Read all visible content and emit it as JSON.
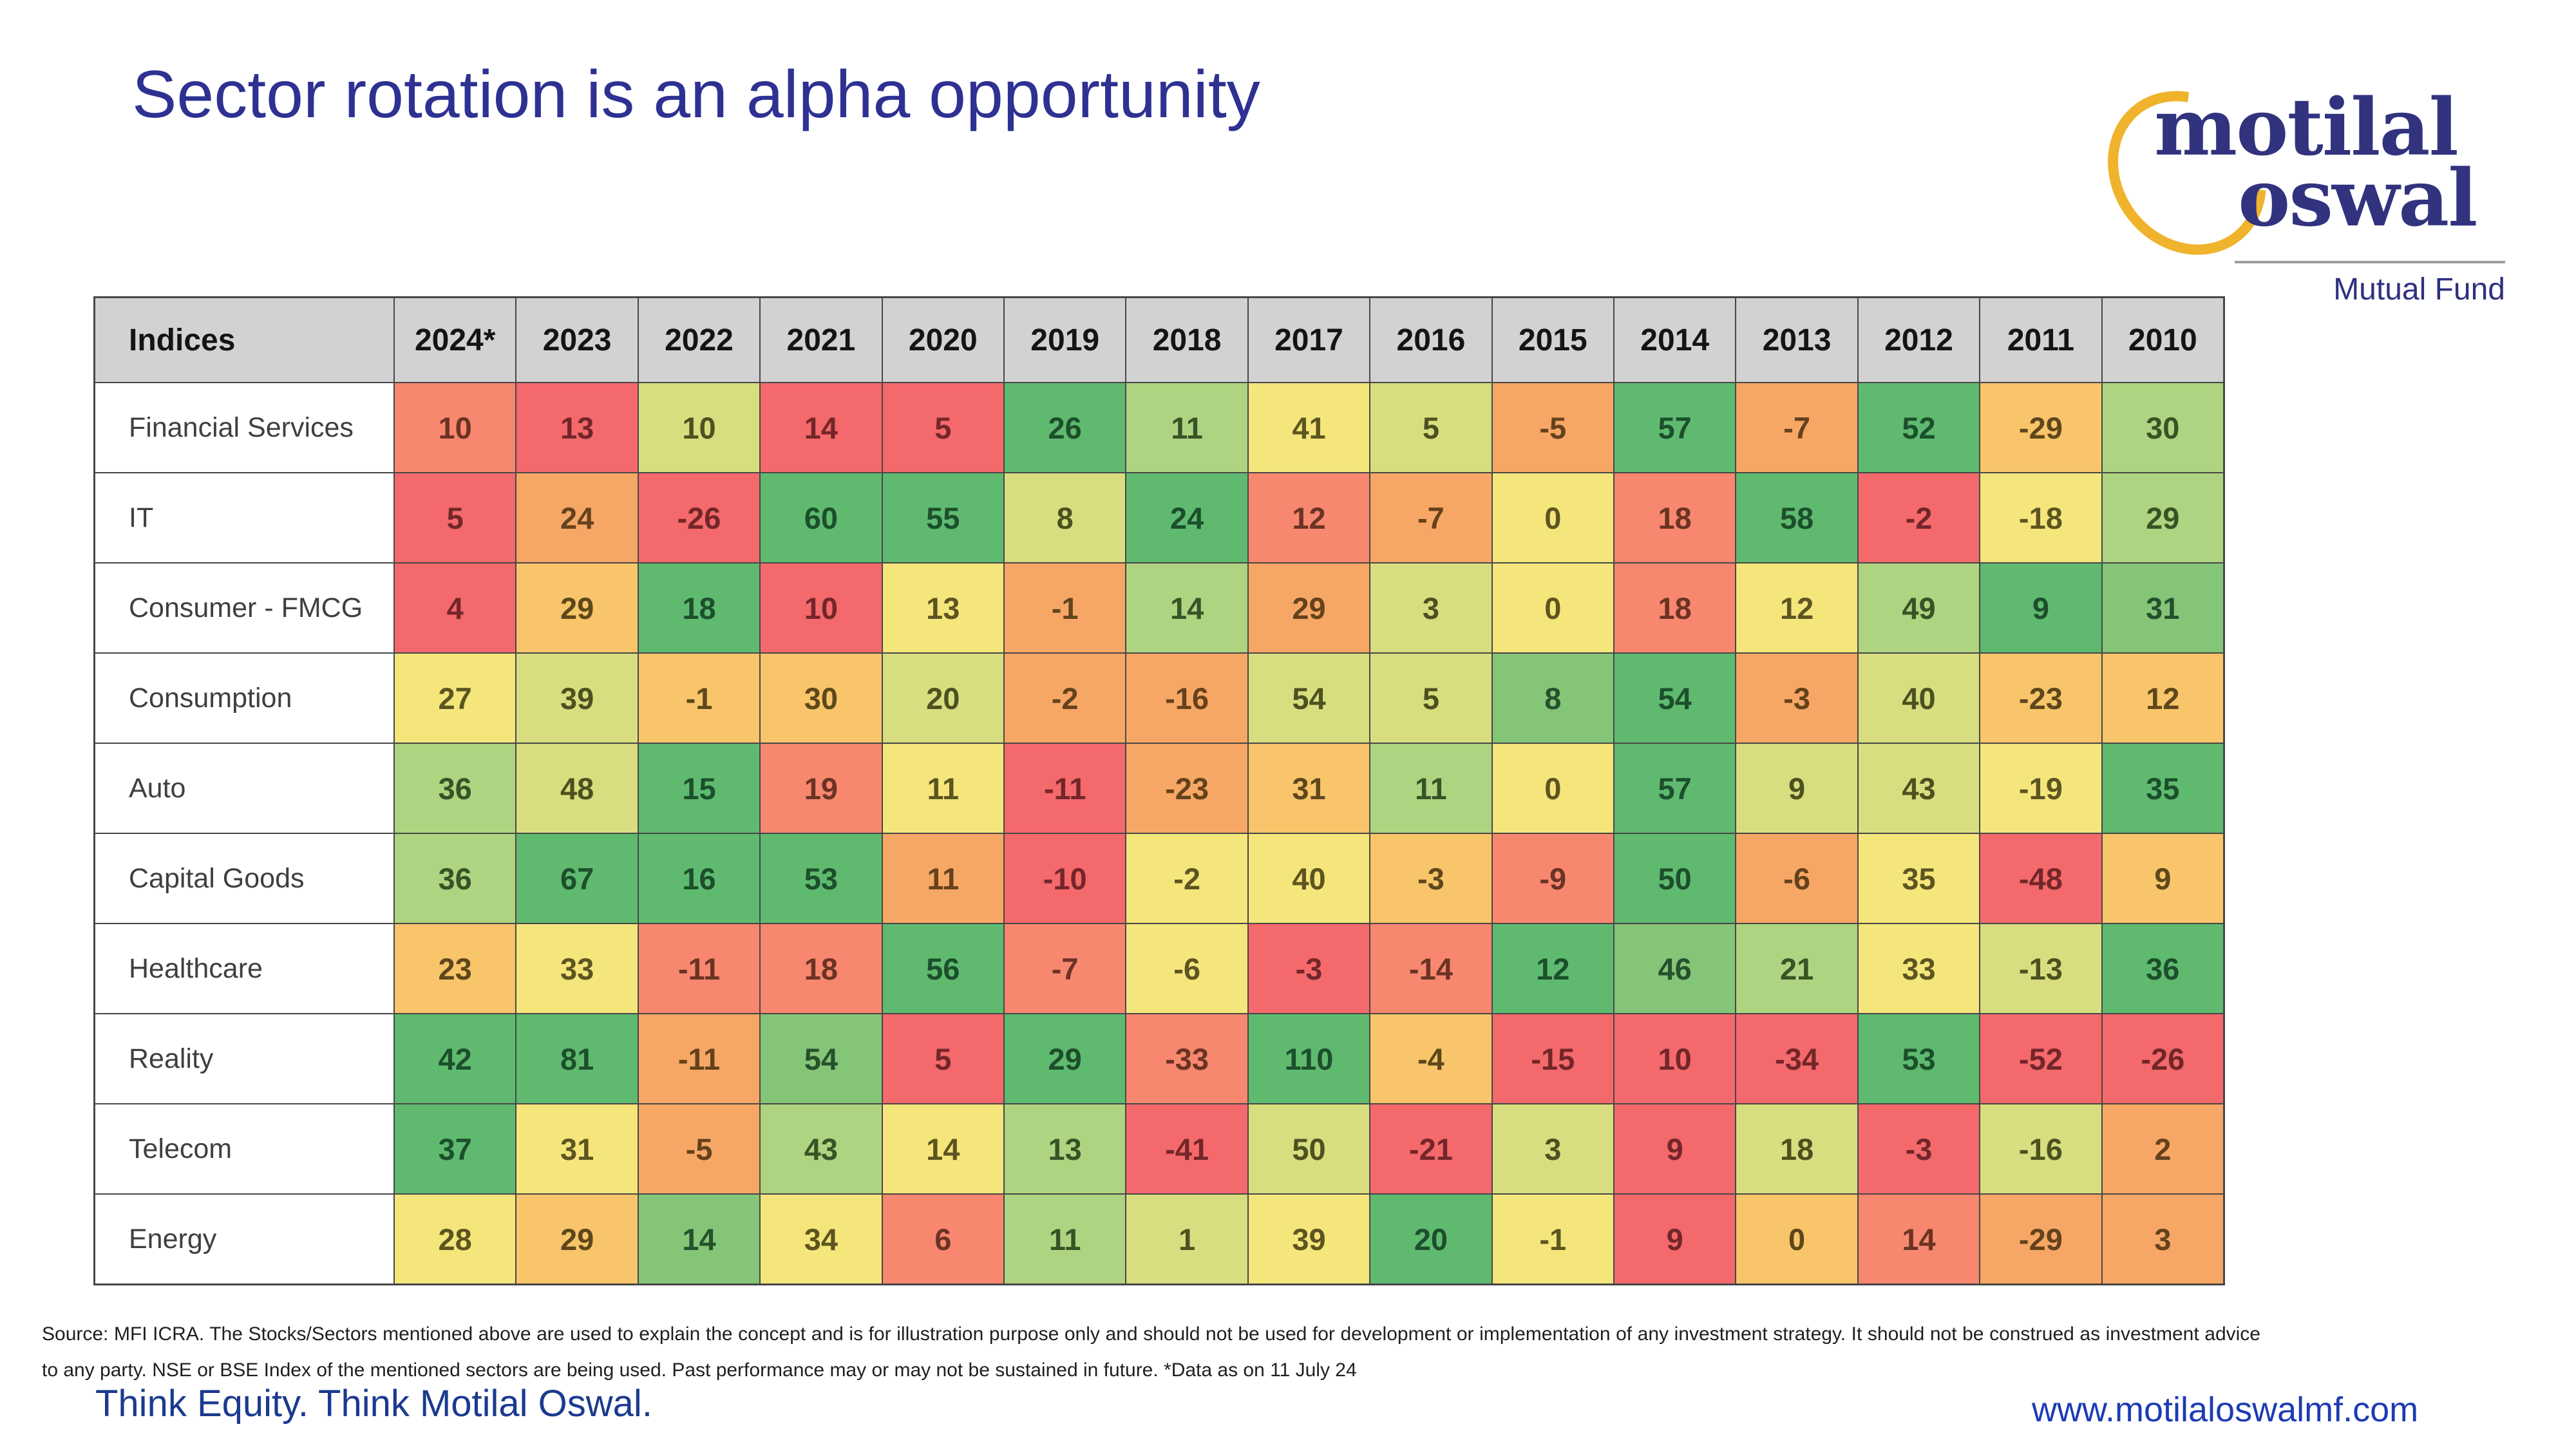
{
  "title": "Sector rotation is an alpha opportunity",
  "logo": {
    "word1": "motilal",
    "word2": "oswal",
    "subtitle": "Mutual Fund",
    "ring_color": "#efb32c",
    "text_color": "#31337f"
  },
  "chart_data": {
    "type": "heatmap",
    "title": "Sector rotation is an alpha opportunity",
    "header_label": "Indices",
    "columns": [
      "2024*",
      "2023",
      "2022",
      "2021",
      "2020",
      "2019",
      "2018",
      "2017",
      "2016",
      "2015",
      "2014",
      "2013",
      "2012",
      "2011",
      "2010"
    ],
    "rows": [
      "Financial Services",
      "IT",
      "Consumer - FMCG",
      "Consumption",
      "Auto",
      "Capital Goods",
      "Healthcare",
      "Reality",
      "Telecom",
      "Energy"
    ],
    "values": [
      [
        10,
        13,
        10,
        14,
        5,
        26,
        11,
        41,
        5,
        -5,
        57,
        -7,
        52,
        -29,
        30
      ],
      [
        5,
        24,
        -26,
        60,
        55,
        8,
        24,
        12,
        -7,
        0,
        18,
        58,
        -2,
        -18,
        29
      ],
      [
        4,
        29,
        18,
        10,
        13,
        -1,
        14,
        29,
        3,
        0,
        18,
        12,
        49,
        9,
        31
      ],
      [
        27,
        39,
        -1,
        30,
        20,
        -2,
        -16,
        54,
        5,
        8,
        54,
        -3,
        40,
        -23,
        12
      ],
      [
        36,
        48,
        15,
        19,
        11,
        -11,
        -23,
        31,
        11,
        0,
        57,
        9,
        43,
        -19,
        35
      ],
      [
        36,
        67,
        16,
        53,
        11,
        -10,
        -2,
        40,
        -3,
        -9,
        50,
        -6,
        35,
        -48,
        9
      ],
      [
        23,
        33,
        -11,
        18,
        56,
        -7,
        -6,
        -3,
        -14,
        12,
        46,
        21,
        33,
        -13,
        36
      ],
      [
        42,
        81,
        -11,
        54,
        5,
        29,
        -33,
        110,
        -4,
        -15,
        10,
        -34,
        53,
        -52,
        -26
      ],
      [
        37,
        31,
        -5,
        43,
        14,
        13,
        -41,
        50,
        -21,
        3,
        9,
        18,
        -3,
        -16,
        2
      ],
      [
        28,
        29,
        14,
        34,
        6,
        11,
        1,
        39,
        20,
        -1,
        9,
        0,
        14,
        -29,
        3
      ]
    ],
    "cell_colors": [
      [
        "salmon",
        "red",
        "yellowgreen",
        "red",
        "red",
        "green",
        "lightgreen",
        "yellow",
        "yellowgreen",
        "orange",
        "green",
        "orange",
        "green",
        "amber",
        "lightgreen"
      ],
      [
        "red",
        "orange",
        "red",
        "green",
        "green",
        "yellowgreen",
        "green",
        "salmon",
        "orange",
        "yellow",
        "salmon",
        "green",
        "red",
        "yellow",
        "lightgreen"
      ],
      [
        "red",
        "amber",
        "green",
        "red",
        "yellow",
        "orange",
        "lightgreen",
        "orange",
        "yellowgreen",
        "yellow",
        "salmon",
        "yellow",
        "lightgreen",
        "green",
        "mediumgreen"
      ],
      [
        "yellow",
        "yellowgreen",
        "amber",
        "amber",
        "yellowgreen",
        "orange",
        "orange",
        "yellowgreen",
        "yellowgreen",
        "mediumgreen",
        "green",
        "orange",
        "yellowgreen",
        "amber",
        "amber"
      ],
      [
        "lightgreen",
        "yellowgreen",
        "green",
        "salmon",
        "yellow",
        "red",
        "orange",
        "amber",
        "lightgreen",
        "yellow",
        "green",
        "yellowgreen",
        "yellowgreen",
        "yellow",
        "green"
      ],
      [
        "lightgreen",
        "green",
        "green",
        "green",
        "orange",
        "red",
        "yellow",
        "yellow",
        "amber",
        "salmon",
        "green",
        "orange",
        "yellow",
        "red",
        "amber"
      ],
      [
        "amber",
        "yellow",
        "salmon",
        "salmon",
        "green",
        "salmon",
        "yellow",
        "red",
        "salmon",
        "green",
        "mediumgreen",
        "lightgreen",
        "yellow",
        "yellowgreen",
        "green"
      ],
      [
        "green",
        "green",
        "orange",
        "mediumgreen",
        "red",
        "green",
        "salmon",
        "green",
        "amber",
        "red",
        "red",
        "red",
        "green",
        "red",
        "red"
      ],
      [
        "green",
        "yellow",
        "orange",
        "lightgreen",
        "yellow",
        "lightgreen",
        "red",
        "yellowgreen",
        "red",
        "yellowgreen",
        "red",
        "yellowgreen",
        "red",
        "yellowgreen",
        "orange"
      ],
      [
        "yellow",
        "amber",
        "mediumgreen",
        "yellow",
        "salmon",
        "lightgreen",
        "yellowgreen",
        "yellow",
        "green",
        "yellow",
        "red",
        "amber",
        "salmon",
        "orange",
        "orange"
      ]
    ],
    "palette": {
      "red": "#F4696B",
      "salmon": "#F8876F",
      "orange": "#F7A765",
      "amber": "#F8C56A",
      "yellow": "#F5E67C",
      "yellowgreen": "#D8DE7F",
      "lightgreen": "#AFD481",
      "mediumgreen": "#84C578",
      "green": "#5FBA70"
    },
    "text_palette": {
      "red": "#73262a",
      "salmon": "#6b3324",
      "orange": "#64421c",
      "amber": "#5e471b",
      "yellow": "#5d5520",
      "yellowgreen": "#4c511f",
      "lightgreen": "#375426",
      "mediumgreen": "#25512c",
      "green": "#1c4f2b"
    },
    "header_bg": "#d2d2d2",
    "grid_color": "#474747",
    "legend_position": "none"
  },
  "source_note": "Source: MFI ICRA. The Stocks/Sectors mentioned above are used to explain the concept and is for illustration purpose only and should not be used for development or implementation of any investment strategy. It should not be construed as investment advice to any party. NSE or BSE Index of the mentioned sectors are being used. Past performance may or may not be sustained in future. *Data as on 11 July 24",
  "footer": {
    "tagline": "Think Equity. Think Motilal Oswal.",
    "website": "www.motilaloswalmf.com"
  }
}
